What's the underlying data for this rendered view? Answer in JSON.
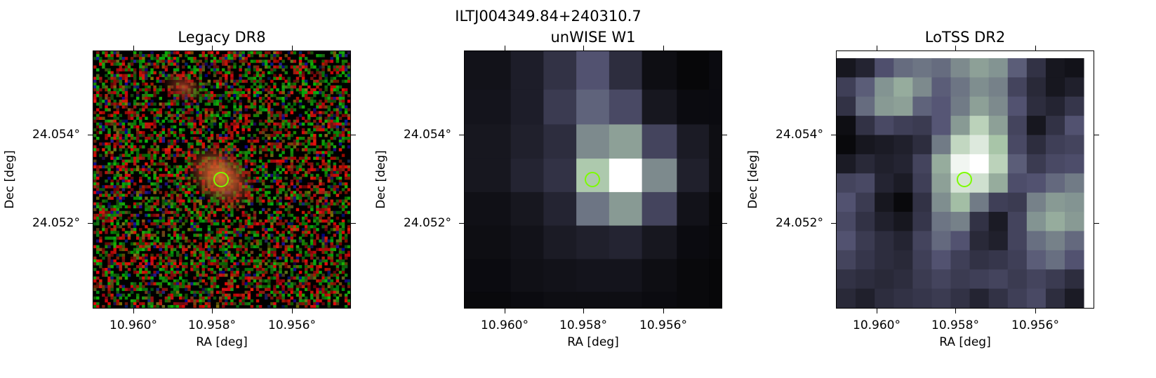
{
  "figure": {
    "title": "ILTJ004349.84+240310.7"
  },
  "marker": {
    "color": "#7cfc00"
  },
  "panels": [
    {
      "title": "Legacy DR8",
      "image": "legacy-optical-rgb-cutout",
      "xlabel": "RA [deg]",
      "ylabel": "Dec [deg]",
      "xticks": [
        "10.960°",
        "10.958°",
        "10.956°"
      ],
      "yticks": [
        "24.054°",
        "24.052°"
      ]
    },
    {
      "title": "unWISE W1",
      "image": "unwise-w1-cutout",
      "xlabel": "RA [deg]",
      "ylabel": "Dec [deg]",
      "xticks": [
        "10.960°",
        "10.958°",
        "10.956°"
      ],
      "yticks": [
        "24.054°",
        "24.052°"
      ]
    },
    {
      "title": "LoTSS DR2",
      "image": "lotss-dr2-radio-cutout",
      "xlabel": "RA [deg]",
      "ylabel": "Dec [deg]",
      "xticks": [
        "10.960°",
        "10.958°",
        "10.956°"
      ],
      "yticks": [
        "24.054°",
        "24.052°"
      ]
    }
  ]
}
